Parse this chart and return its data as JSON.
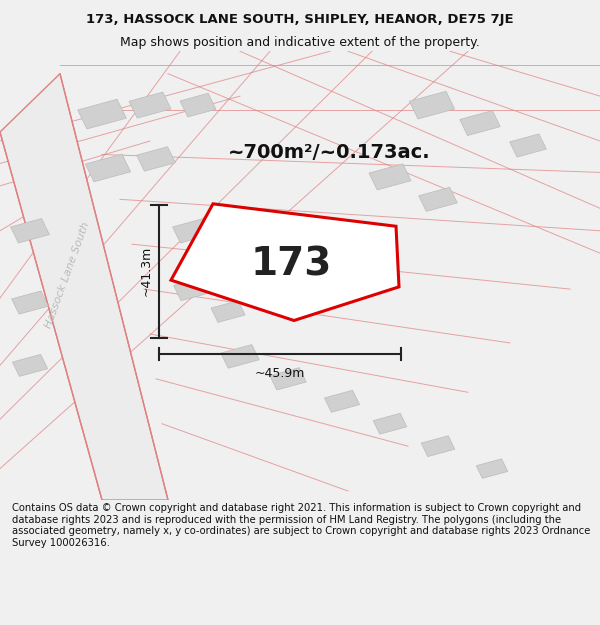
{
  "title_line1": "173, HASSOCK LANE SOUTH, SHIPLEY, HEANOR, DE75 7JE",
  "title_line2": "Map shows position and indicative extent of the property.",
  "footer_text": "Contains OS data © Crown copyright and database right 2021. This information is subject to Crown copyright and database rights 2023 and is reproduced with the permission of HM Land Registry. The polygons (including the associated geometry, namely x, y co-ordinates) are subject to Crown copyright and database rights 2023 Ordnance Survey 100026316.",
  "area_label": "~700m²/~0.173ac.",
  "number_label": "173",
  "dim_h": "~41.3m",
  "dim_w": "~45.9m",
  "road_label": "Hassock Lane South",
  "bg_color": "#f0f0f0",
  "map_bg": "#ffffff",
  "road_color": "#e08080",
  "road_fill": "#e8e8e8",
  "plot_edge_color": "#dd0000",
  "building_color": "#d0d0d0",
  "building_edge": "#bbbbbb",
  "dim_line_color": "#222222",
  "title_fontsize": 9.5,
  "footer_fontsize": 7.2,
  "area_fontsize": 14,
  "number_fontsize": 28,
  "dim_fontsize": 9,
  "road_label_fontsize": 8
}
